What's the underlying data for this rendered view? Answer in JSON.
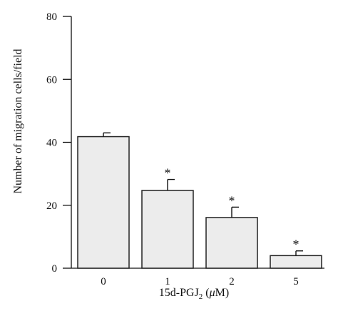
{
  "chart_data": {
    "type": "bar",
    "categories": [
      "0",
      "1",
      "2",
      "5"
    ],
    "values": [
      41.8,
      24.7,
      16.1,
      4.0
    ],
    "errors": [
      1.2,
      3.5,
      3.3,
      1.5
    ],
    "significance": [
      "",
      "*",
      "*",
      "*"
    ],
    "ylabel": "Number of migration cells/field",
    "xlabel": {
      "prefix": "15d-PGJ",
      "subscript": "2",
      "unit_open": " (",
      "unit_mu": "μ",
      "unit_rest": "M)"
    },
    "ylim": [
      0,
      80
    ],
    "yticks": [
      "0",
      "20",
      "40",
      "60",
      "80"
    ],
    "grid": false,
    "bar_fill": "#ececec",
    "bar_stroke": "#222222"
  }
}
